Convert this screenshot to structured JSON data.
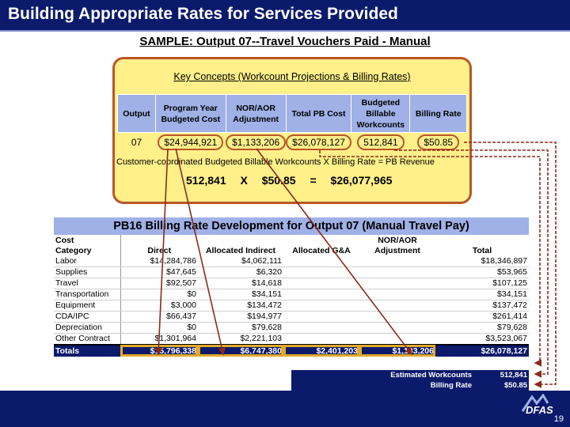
{
  "header": {
    "title": "Building Appropriate Rates for Services Provided"
  },
  "subtitle": "SAMPLE: Output 07--Travel Vouchers Paid - Manual",
  "key_concepts": {
    "title": "Key Concepts (Workcount Projections & Billing Rates)",
    "columns": [
      "Output",
      "Program Year Budgeted Cost",
      "NOR/AOR Adjustment",
      "Total PB Cost",
      "Budgeted Billable Workcounts",
      "Billing Rate"
    ],
    "row": [
      "07",
      "$24,944,921",
      "$1,133,206",
      "$26,078,127",
      "512,841",
      "$50.85"
    ],
    "formula": "Customer-coordinated Budgeted Billable Workcounts X Billing Rate = PB Revenue",
    "calc": [
      "512,841",
      "X",
      "$50.85",
      "=",
      "$26,077,965"
    ]
  },
  "main": {
    "title": "PB16 Billing Rate Development for Output 07 (Manual Travel Pay)",
    "header_top": [
      "Cost",
      "",
      "",
      "",
      "NOR/AOR",
      ""
    ],
    "header_bottom": [
      "Category",
      "Direct",
      "Allocated Indirect",
      "Allocated G&A",
      "Adjustment",
      "Total"
    ],
    "rows": [
      [
        "Labor",
        "$14,284,786",
        "$4,062,111",
        "",
        "",
        "$18,346,897"
      ],
      [
        "Supplies",
        "$47,645",
        "$6,320",
        "",
        "",
        "$53,965"
      ],
      [
        "Travel",
        "$92,507",
        "$14,618",
        "",
        "",
        "$107,125"
      ],
      [
        "Transportation",
        "$0",
        "$34,151",
        "",
        "",
        "$34,151"
      ],
      [
        "Equipment",
        "$3,000",
        "$134,472",
        "",
        "",
        "$137,472"
      ],
      [
        "CDA/IPC",
        "$66,437",
        "$194,977",
        "",
        "",
        "$261,414"
      ],
      [
        "Depreciation",
        "$0",
        "$79,628",
        "",
        "",
        "$79,628"
      ],
      [
        "Other Contract",
        "$1,301,964",
        "$2,221,103",
        "",
        "",
        "$3,523,067"
      ]
    ],
    "totals": [
      "Totals",
      "$15,796,338",
      "$6,747,380",
      "$2,401,203",
      "$1,133,206",
      "$26,078,127"
    ],
    "estimated_workcounts_label": "Estimated Workcounts",
    "estimated_workcounts": "512,841",
    "billing_rate_label": "Billing Rate",
    "billing_rate": "$50.85"
  },
  "footer": {
    "page_number": "19",
    "logo_text": "DFAS"
  },
  "colors": {
    "navy": "#0b1a6b",
    "header_blue": "#9fb1e6",
    "box_yellow": "#fff08a",
    "accent_orange": "#b9562a",
    "highlight_gold": "#e0a92a"
  }
}
